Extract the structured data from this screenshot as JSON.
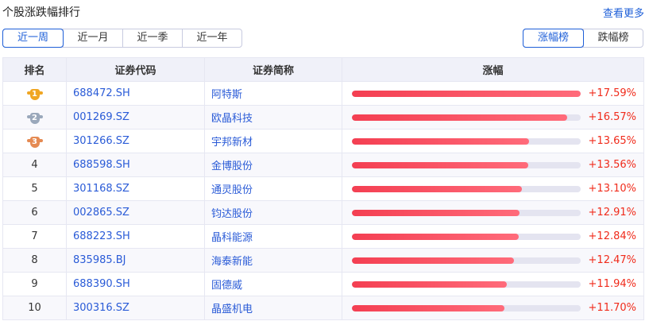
{
  "header": {
    "title": "个股涨跌幅排行",
    "more_link": "查看更多"
  },
  "period_tabs": [
    {
      "label": "近一周",
      "active": true
    },
    {
      "label": "近一月",
      "active": false
    },
    {
      "label": "近一季",
      "active": false
    },
    {
      "label": "近一年",
      "active": false
    }
  ],
  "rank_tabs": [
    {
      "label": "涨幅榜",
      "active": true
    },
    {
      "label": "跌幅榜",
      "active": false
    }
  ],
  "table": {
    "columns": [
      "排名",
      "证券代码",
      "证券简称",
      "涨幅"
    ],
    "max_change": 17.59,
    "medal_colors": [
      "#f0a623",
      "#9aa8bb",
      "#e58a52"
    ],
    "rows": [
      {
        "rank": "1",
        "code": "688472.SH",
        "name": "阿特斯",
        "change": "+17.59%",
        "value": 17.59
      },
      {
        "rank": "2",
        "code": "001269.SZ",
        "name": "欧晶科技",
        "change": "+16.57%",
        "value": 16.57
      },
      {
        "rank": "3",
        "code": "301266.SZ",
        "name": "宇邦新材",
        "change": "+13.65%",
        "value": 13.65
      },
      {
        "rank": "4",
        "code": "688598.SH",
        "name": "金博股份",
        "change": "+13.56%",
        "value": 13.56
      },
      {
        "rank": "5",
        "code": "301168.SZ",
        "name": "通灵股份",
        "change": "+13.10%",
        "value": 13.1
      },
      {
        "rank": "6",
        "code": "002865.SZ",
        "name": "钧达股份",
        "change": "+12.91%",
        "value": 12.91
      },
      {
        "rank": "7",
        "code": "688223.SH",
        "name": "晶科能源",
        "change": "+12.84%",
        "value": 12.84
      },
      {
        "rank": "8",
        "code": "835985.BJ",
        "name": "海泰新能",
        "change": "+12.47%",
        "value": 12.47
      },
      {
        "rank": "9",
        "code": "688390.SH",
        "name": "固德威",
        "change": "+11.94%",
        "value": 11.94
      },
      {
        "rank": "10",
        "code": "300316.SZ",
        "name": "晶盛机电",
        "change": "+11.70%",
        "value": 11.7
      }
    ]
  }
}
